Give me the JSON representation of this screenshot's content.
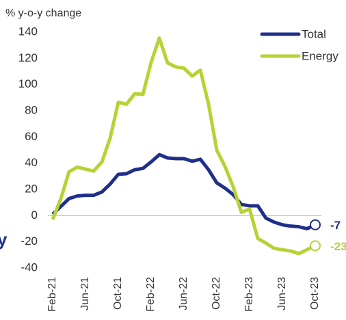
{
  "chart_data": {
    "type": "line",
    "y_axis_label": "% y-o-y change",
    "annotation": "y",
    "categories": [
      "Feb-21",
      null,
      null,
      null,
      "Jun-21",
      null,
      null,
      null,
      "Oct-21",
      null,
      null,
      null,
      "Feb-22",
      null,
      null,
      null,
      "Jun-22",
      null,
      null,
      null,
      "Oct-22",
      null,
      null,
      null,
      "Feb-23",
      null,
      null,
      null,
      "Jun-23",
      null,
      null,
      null,
      "Oct-23"
    ],
    "series": [
      {
        "name": "Total",
        "color": "#1f2f8a",
        "values": [
          1,
          7,
          13,
          15,
          15.5,
          15.5,
          18,
          24,
          31.5,
          32,
          35,
          36,
          41,
          46.5,
          44,
          43.5,
          43.5,
          41.5,
          43,
          35,
          25,
          21,
          16,
          8.5,
          7.5,
          7.5,
          -2,
          -5,
          -7,
          -8,
          -8.5,
          -10,
          -7
        ]
      },
      {
        "name": "Energy",
        "color": "#b5d334",
        "values": [
          -3,
          13,
          33.5,
          37,
          35.5,
          34,
          41,
          59,
          86.5,
          85,
          93,
          92.5,
          117,
          135.5,
          116.5,
          113.5,
          112.5,
          106.5,
          111,
          85,
          50,
          37.5,
          22,
          2.5,
          5,
          -17.5,
          -21,
          -25,
          -26,
          -27,
          -29,
          -26,
          -23
        ]
      }
    ],
    "ylim": [
      -40,
      140
    ],
    "yticks": [
      -40,
      -20,
      0,
      20,
      40,
      60,
      80,
      100,
      120,
      140
    ],
    "grid": false,
    "legend": "upper right"
  }
}
